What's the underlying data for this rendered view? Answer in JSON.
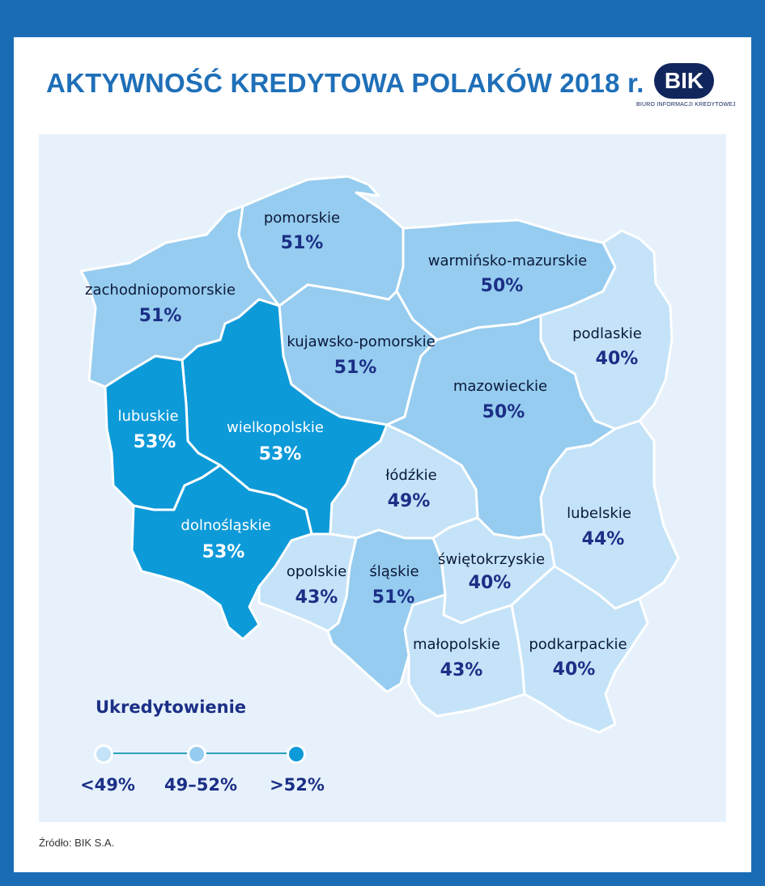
{
  "title": "AKTYWNOŚĆ KREDYTOWA POLAKÓW 2018 r.",
  "logo": {
    "text": "BIK",
    "subtitle": "BIURO INFORMACJI KREDYTOWEJ"
  },
  "colors": {
    "low": "#c4e3f8",
    "mid": "#96ccef",
    "high": "#0d9ad8",
    "frame": "#1a6db5",
    "accent": "#1f6fb8"
  },
  "regions": [
    {
      "id": "zachodniopomorskie",
      "name": "zachodniopomorskie",
      "value": "51%",
      "category": "mid"
    },
    {
      "id": "pomorskie",
      "name": "pomorskie",
      "value": "51%",
      "category": "mid"
    },
    {
      "id": "warminsko-mazurskie",
      "name": "warmińsko-mazurskie",
      "value": "50%",
      "category": "mid"
    },
    {
      "id": "podlaskie",
      "name": "podlaskie",
      "value": "40%",
      "category": "low"
    },
    {
      "id": "kujawsko-pomorskie",
      "name": "kujawsko-pomorskie",
      "value": "51%",
      "category": "mid"
    },
    {
      "id": "lubuskie",
      "name": "lubuskie",
      "value": "53%",
      "category": "high"
    },
    {
      "id": "wielkopolskie",
      "name": "wielkopolskie",
      "value": "53%",
      "category": "high"
    },
    {
      "id": "mazowieckie",
      "name": "mazowieckie",
      "value": "50%",
      "category": "mid"
    },
    {
      "id": "lodzkie",
      "name": "łódźkie",
      "value": "49%",
      "category": "low"
    },
    {
      "id": "lubelskie",
      "name": "lubelskie",
      "value": "44%",
      "category": "low"
    },
    {
      "id": "dolnoslaskie",
      "name": "dolnośląskie",
      "value": "53%",
      "category": "high"
    },
    {
      "id": "opolskie",
      "name": "opolskie",
      "value": "43%",
      "category": "low"
    },
    {
      "id": "slaskie",
      "name": "śląskie",
      "value": "51%",
      "category": "mid"
    },
    {
      "id": "swietokrzyskie",
      "name": "świętokrzyskie",
      "value": "40%",
      "category": "low"
    },
    {
      "id": "malopolskie",
      "name": "małopolskie",
      "value": "43%",
      "category": "low"
    },
    {
      "id": "podkarpackie",
      "name": "podkarpackie",
      "value": "40%",
      "category": "low"
    }
  ],
  "legend": {
    "title": "Ukredytowienie",
    "items": [
      {
        "label": "<49%",
        "category": "low"
      },
      {
        "label": "49–52%",
        "category": "mid"
      },
      {
        "label": ">52%",
        "category": "high"
      }
    ]
  },
  "source": "Źródło: BIK S.A."
}
